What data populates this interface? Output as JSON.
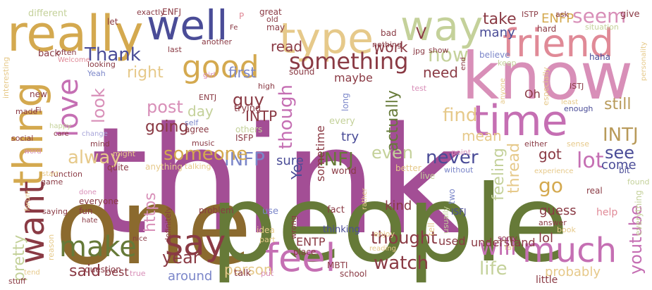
{
  "palette": {
    "purple": "#a34e95",
    "olive": "#667a38",
    "brown": "#8b6a2e",
    "gold": "#d4a94f",
    "navy": "#4a4c97",
    "pink": "#d88fb8",
    "rose": "#e08a97",
    "maroon": "#8a3a44",
    "sand": "#e6c98a",
    "sage": "#c4d19a",
    "lavender": "#a7a4d9",
    "mauve": "#c56fb3",
    "tan": "#b89a5a",
    "periwinkle": "#7b86c9"
  },
  "words": [
    {
      "text": "think",
      "color": "purple"
    },
    {
      "text": "one",
      "color": "brown"
    },
    {
      "text": "people",
      "color": "olive"
    },
    {
      "text": "know",
      "color": "pink"
    },
    {
      "text": "really",
      "color": "gold"
    },
    {
      "text": "well",
      "color": "navy"
    },
    {
      "text": "type",
      "color": "sand"
    },
    {
      "text": "way",
      "color": "sage"
    },
    {
      "text": "friend",
      "color": "rose"
    },
    {
      "text": "time",
      "color": "mauve"
    },
    {
      "text": "thing",
      "color": "gold"
    },
    {
      "text": "want",
      "color": "maroon"
    },
    {
      "text": "good",
      "color": "gold"
    },
    {
      "text": "love",
      "color": "mauve"
    },
    {
      "text": "say",
      "color": "maroon"
    },
    {
      "text": "feel",
      "color": "mauve"
    },
    {
      "text": "much",
      "color": "mauve"
    },
    {
      "text": "make",
      "color": "olive"
    },
    {
      "text": "something",
      "color": "maroon"
    },
    {
      "text": "Thank",
      "color": "navy"
    },
    {
      "text": "seem",
      "color": "pink"
    },
    {
      "text": "now",
      "color": "sage"
    },
    {
      "text": "INFP",
      "color": "periwinkle"
    },
    {
      "text": "INFJ",
      "color": "olive"
    },
    {
      "text": "INTJ",
      "color": "tan"
    },
    {
      "text": "lot",
      "color": "mauve"
    },
    {
      "text": "see",
      "color": "navy"
    },
    {
      "text": "someone",
      "color": "gold"
    },
    {
      "text": "alway",
      "color": "sand"
    },
    {
      "text": "even",
      "color": "sage"
    },
    {
      "text": "never",
      "color": "navy"
    },
    {
      "text": "will",
      "color": "mauve"
    },
    {
      "text": "watch",
      "color": "maroon"
    },
    {
      "text": "year",
      "color": "maroon"
    },
    {
      "text": "life",
      "color": "sage"
    },
    {
      "text": "youtube",
      "color": "mauve"
    },
    {
      "text": "go",
      "color": "gold"
    },
    {
      "text": "find",
      "color": "sand"
    },
    {
      "text": "thought",
      "color": "maroon"
    },
    {
      "text": "though",
      "color": "mauve"
    },
    {
      "text": "actually",
      "color": "olive"
    },
    {
      "text": "work",
      "color": "maroon"
    },
    {
      "text": "need",
      "color": "maroon"
    },
    {
      "text": "take",
      "color": "maroon"
    },
    {
      "text": "many",
      "color": "navy"
    },
    {
      "text": "ENFP",
      "color": "gold"
    },
    {
      "text": "post",
      "color": "pink"
    },
    {
      "text": "right",
      "color": "sand"
    },
    {
      "text": "first",
      "color": "periwinkle"
    },
    {
      "text": "guy",
      "color": "maroon"
    },
    {
      "text": "day",
      "color": "sage"
    },
    {
      "text": "going",
      "color": "maroon"
    },
    {
      "text": "INTP",
      "color": "maroon"
    },
    {
      "text": "look",
      "color": "pink"
    },
    {
      "text": "read",
      "color": "maroon"
    },
    {
      "text": "maybe",
      "color": "maroon"
    },
    {
      "text": "sure",
      "color": "navy"
    },
    {
      "text": "try",
      "color": "navy"
    },
    {
      "text": "mean",
      "color": "sand"
    },
    {
      "text": "still",
      "color": "tan"
    },
    {
      "text": "come",
      "color": "navy"
    },
    {
      "text": "got",
      "color": "maroon"
    },
    {
      "text": "feeling",
      "color": "sage"
    },
    {
      "text": "thread",
      "color": "sand"
    },
    {
      "text": "kind",
      "color": "maroon"
    },
    {
      "text": "said",
      "color": "maroon"
    },
    {
      "text": "pretty",
      "color": "sage"
    },
    {
      "text": "https",
      "color": "pink"
    },
    {
      "text": "person",
      "color": "sand"
    },
    {
      "text": "ENTP",
      "color": "maroon"
    },
    {
      "text": "around",
      "color": "periwinkle"
    },
    {
      "text": "best",
      "color": "maroon"
    },
    {
      "text": "probably",
      "color": "sand"
    },
    {
      "text": "guess",
      "color": "maroon"
    },
    {
      "text": "lol",
      "color": "maroon"
    },
    {
      "text": "Oh",
      "color": "maroon"
    },
    {
      "text": "used",
      "color": "maroon"
    },
    {
      "text": "understand",
      "color": "maroon"
    },
    {
      "text": "little",
      "color": "maroon"
    },
    {
      "text": "sometime",
      "color": "maroon"
    },
    {
      "text": "Ye",
      "color": "navy"
    },
    {
      "text": "V",
      "color": "maroon"
    },
    {
      "text": "trying",
      "color": "maroon"
    },
    {
      "text": "ENTJ",
      "color": "maroon"
    },
    {
      "text": "ISFP",
      "color": "maroon"
    },
    {
      "text": "agree",
      "color": "maroon"
    },
    {
      "text": "others",
      "color": "sage"
    },
    {
      "text": "music",
      "color": "maroon"
    },
    {
      "text": "self",
      "color": "periwinkle"
    },
    {
      "text": "girl",
      "color": "pink"
    },
    {
      "text": "high",
      "color": "maroon"
    },
    {
      "text": "sound",
      "color": "maroon"
    },
    {
      "text": "long",
      "color": "periwinkle"
    },
    {
      "text": "every",
      "color": "sage"
    },
    {
      "text": "world",
      "color": "maroon"
    },
    {
      "text": "better",
      "color": "sand"
    },
    {
      "text": "live",
      "color": "sage"
    },
    {
      "text": "without",
      "color": "periwinkle"
    },
    {
      "text": "fact",
      "color": "maroon"
    },
    {
      "text": "two",
      "color": "periwinkle"
    },
    {
      "text": "tell",
      "color": "sand"
    },
    {
      "text": "usually",
      "color": "sage"
    },
    {
      "text": "thinking",
      "color": "navy"
    },
    {
      "text": "enjoy",
      "color": "sand"
    },
    {
      "text": "ISFJ",
      "color": "navy"
    },
    {
      "text": "sorry",
      "color": "maroon"
    },
    {
      "text": "answer",
      "color": "maroon"
    },
    {
      "text": "help",
      "color": "rose"
    },
    {
      "text": "book",
      "color": "sand"
    },
    {
      "text": "real",
      "color": "maroon"
    },
    {
      "text": "found",
      "color": "sage"
    },
    {
      "text": "everything",
      "color": "sage"
    },
    {
      "text": "sense",
      "color": "sand"
    },
    {
      "text": "bit",
      "color": "navy"
    },
    {
      "text": "experience",
      "color": "sand"
    },
    {
      "text": "enough",
      "color": "navy"
    },
    {
      "text": "least",
      "color": "sand"
    },
    {
      "text": "ISTJ",
      "color": "maroon"
    },
    {
      "text": "especially",
      "color": "sand"
    },
    {
      "text": "haha",
      "color": "navy"
    },
    {
      "text": "situation",
      "color": "sage"
    },
    {
      "text": "hard",
      "color": "maroon"
    },
    {
      "text": "ISTP",
      "color": "maroon"
    },
    {
      "text": "ask",
      "color": "maroon"
    },
    {
      "text": "give",
      "color": "maroon"
    },
    {
      "text": "personality",
      "color": "sand"
    },
    {
      "text": "believe",
      "color": "periwinkle"
    },
    {
      "text": "keep",
      "color": "sage"
    },
    {
      "text": "test",
      "color": "pink"
    },
    {
      "text": "anyone",
      "color": "sand"
    },
    {
      "text": "end",
      "color": "maroon"
    },
    {
      "text": "show",
      "color": "maroon"
    },
    {
      "text": "jpg",
      "color": "maroon"
    },
    {
      "text": "nothing",
      "color": "maroon"
    },
    {
      "text": "bad",
      "color": "maroon"
    },
    {
      "text": "may",
      "color": "maroon"
    },
    {
      "text": "old",
      "color": "maroon"
    },
    {
      "text": "great",
      "color": "maroon"
    },
    {
      "text": "Fe",
      "color": "maroon"
    },
    {
      "text": "P",
      "color": "rose"
    },
    {
      "text": "ENFJ",
      "color": "maroon"
    },
    {
      "text": "exactly",
      "color": "maroon"
    },
    {
      "text": "let",
      "color": "maroon"
    },
    {
      "text": "different",
      "color": "sage"
    },
    {
      "text": "last",
      "color": "maroon"
    },
    {
      "text": "another",
      "color": "maroon"
    },
    {
      "text": "looking",
      "color": "maroon"
    },
    {
      "text": "often",
      "color": "maroon"
    },
    {
      "text": "back",
      "color": "maroon"
    },
    {
      "text": "Welcome",
      "color": "rose"
    },
    {
      "text": "Yeah",
      "color": "periwinkle"
    },
    {
      "text": "interesting",
      "color": "sand"
    },
    {
      "text": "new",
      "color": "maroon"
    },
    {
      "text": "made",
      "color": "maroon"
    },
    {
      "text": "Fi",
      "color": "maroon"
    },
    {
      "text": "happy",
      "color": "sage"
    },
    {
      "text": "care",
      "color": "maroon"
    },
    {
      "text": "change",
      "color": "lavender"
    },
    {
      "text": "social",
      "color": "maroon"
    },
    {
      "text": "word",
      "color": "pink"
    },
    {
      "text": "mind",
      "color": "maroon"
    },
    {
      "text": "might",
      "color": "sand"
    },
    {
      "text": "quite",
      "color": "maroon"
    },
    {
      "text": "anything",
      "color": "sand"
    },
    {
      "text": "talking",
      "color": "sand"
    },
    {
      "text": "function",
      "color": "maroon"
    },
    {
      "text": "start",
      "color": "sand"
    },
    {
      "text": "game",
      "color": "maroon"
    },
    {
      "text": "done",
      "color": "pink"
    },
    {
      "text": "everyone",
      "color": "maroon"
    },
    {
      "text": "fun",
      "color": "maroon"
    },
    {
      "text": "saying",
      "color": "maroon"
    },
    {
      "text": "hate",
      "color": "maroon"
    },
    {
      "text": "definitely",
      "color": "maroon"
    },
    {
      "text": "forum",
      "color": "sand"
    },
    {
      "text": "reason",
      "color": "sand"
    },
    {
      "text": "nice",
      "color": "maroon"
    },
    {
      "text": "question",
      "color": "maroon"
    },
    {
      "text": "true",
      "color": "pink"
    },
    {
      "text": "stuff",
      "color": "maroon"
    },
    {
      "text": "tend",
      "color": "sand"
    },
    {
      "text": "problem",
      "color": "maroon"
    },
    {
      "text": "idea",
      "color": "sand"
    },
    {
      "text": "use",
      "color": "periwinkle"
    },
    {
      "text": "wrong",
      "color": "maroon"
    },
    {
      "text": "part",
      "color": "sand"
    },
    {
      "text": "place",
      "color": "maroon"
    },
    {
      "text": "talk",
      "color": "maroon"
    },
    {
      "text": "put",
      "color": "pink"
    },
    {
      "text": "MBTI",
      "color": "maroon"
    },
    {
      "text": "school",
      "color": "maroon"
    },
    {
      "text": "reading",
      "color": "sand"
    },
    {
      "text": "far",
      "color": "sand"
    },
    {
      "text": "point",
      "color": "pink"
    },
    {
      "text": "either",
      "color": "maroon"
    },
    {
      "text": "rather",
      "color": "sand"
    }
  ]
}
